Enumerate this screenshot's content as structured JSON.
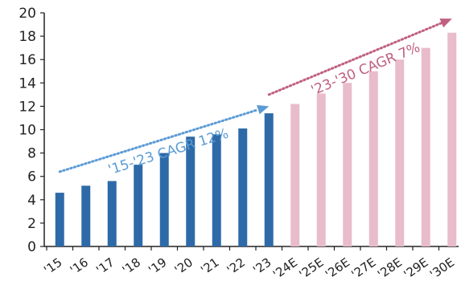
{
  "chart_data": {
    "type": "bar",
    "title": "",
    "xlabel": "",
    "ylabel": "",
    "ylim": [
      0,
      20
    ],
    "yticks": [
      "0",
      "2",
      "4",
      "6",
      "8",
      "10",
      "12",
      "14",
      "16",
      "18",
      "20"
    ],
    "grid": false,
    "categories": [
      "'15",
      "'16",
      "'17",
      "'18",
      "'19",
      "'20",
      "'21",
      "'22",
      "'23",
      "'24E",
      "'25E",
      "'26E",
      "'27E",
      "'28E",
      "'29E",
      "'30E"
    ],
    "values": [
      4.6,
      5.2,
      5.6,
      7.0,
      8.0,
      9.4,
      9.6,
      10.1,
      11.4,
      12.2,
      13.1,
      14.0,
      15.0,
      16.0,
      17.0,
      18.3
    ],
    "colors": {
      "actual": "#2e6aa8",
      "estimate": "#e8bccb",
      "axis": "#222222",
      "annotation_actual": "#5b9bd5",
      "annotation_estimate": "#c0607f"
    },
    "series_segments": [
      {
        "categories": [
          "'15",
          "'16",
          "'17",
          "'18",
          "'19",
          "'20",
          "'21",
          "'22",
          "'23"
        ],
        "color_key": "actual"
      },
      {
        "categories": [
          "'24E",
          "'25E",
          "'26E",
          "'27E",
          "'28E",
          "'29E",
          "'30E"
        ],
        "color_key": "estimate"
      }
    ],
    "annotations": [
      {
        "text": "'15-'23 CAGR 12%",
        "from_category": "'15",
        "to_category": "'23",
        "from_value": 6.4,
        "to_value": 12.0,
        "color_key": "annotation_actual",
        "arrow": "triangle"
      },
      {
        "text": "'23-'30 CAGR 7%",
        "from_category": "'23",
        "to_category": "'30E",
        "from_value": 13.0,
        "to_value": 19.5,
        "color_key": "annotation_estimate",
        "arrow": "triangle"
      }
    ]
  }
}
